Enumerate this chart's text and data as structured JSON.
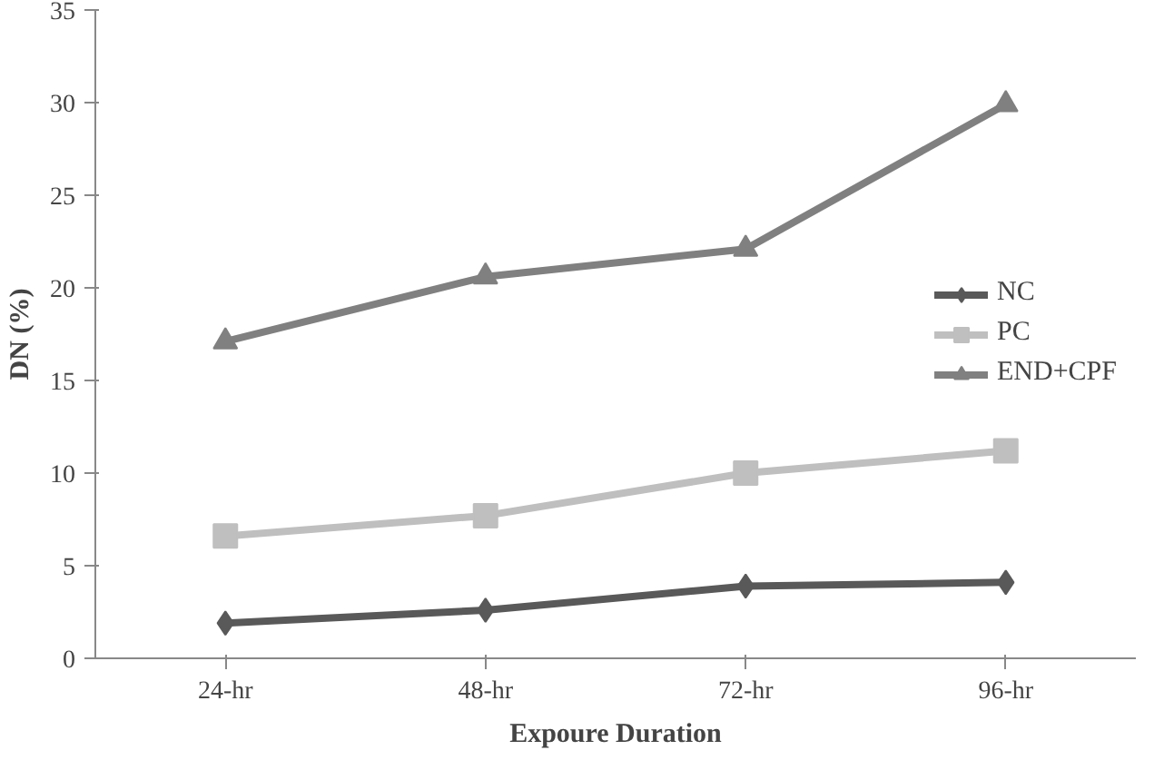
{
  "chart_data": {
    "type": "line",
    "xlabel": "Expoure Duration",
    "ylabel": "DN (%)",
    "categories": [
      "24-hr",
      "48-hr",
      "72-hr",
      "96-hr"
    ],
    "series": [
      {
        "name": "NC",
        "color": "#595959",
        "values": [
          1.9,
          2.6,
          3.9,
          4.1
        ],
        "marker": "diamond"
      },
      {
        "name": "PC",
        "color": "#bfbfbf",
        "values": [
          6.6,
          7.7,
          10.0,
          11.2
        ],
        "marker": "square"
      },
      {
        "name": "END+CPF",
        "color": "#808080",
        "values": [
          17.1,
          20.6,
          22.1,
          29.9
        ],
        "marker": "triangle"
      }
    ],
    "ylim": [
      0,
      35
    ],
    "yticks": [
      0,
      5,
      10,
      15,
      20,
      25,
      30,
      35
    ],
    "grid": false,
    "legend": "right"
  }
}
